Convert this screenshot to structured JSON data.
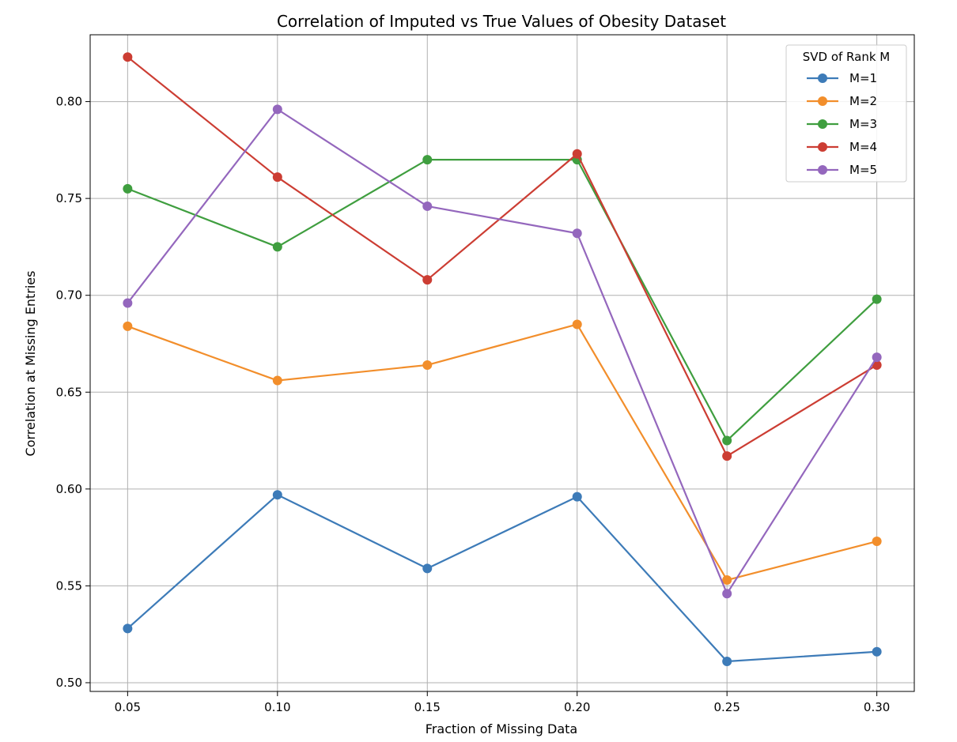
{
  "chart_data": {
    "type": "line",
    "title": "Correlation of Imputed vs True Values of Obesity Dataset",
    "xlabel": "Fraction of Missing Data",
    "ylabel": "Correlation at Missing Entries",
    "x": [
      0.05,
      0.1,
      0.15,
      0.2,
      0.25,
      0.3
    ],
    "x_tick_labels": [
      "0.05",
      "0.10",
      "0.15",
      "0.20",
      "0.25",
      "0.30"
    ],
    "xlim": [
      0.0375,
      0.3125
    ],
    "ylim": [
      0.4955,
      0.8345
    ],
    "y_ticks": [
      0.5,
      0.55,
      0.6,
      0.65,
      0.7,
      0.75,
      0.8
    ],
    "y_tick_labels": [
      "0.50",
      "0.55",
      "0.60",
      "0.65",
      "0.70",
      "0.75",
      "0.80"
    ],
    "grid": true,
    "legend": {
      "title": "SVD of Rank M",
      "placement": "top-right"
    },
    "series": [
      {
        "name": "M=1",
        "color": "#3d7bb8",
        "values": [
          0.528,
          0.597,
          0.559,
          0.596,
          0.511,
          0.516
        ]
      },
      {
        "name": "M=2",
        "color": "#f28e2b",
        "values": [
          0.684,
          0.656,
          0.664,
          0.685,
          0.553,
          0.573
        ]
      },
      {
        "name": "M=3",
        "color": "#3f9e3f",
        "values": [
          0.755,
          0.725,
          0.77,
          0.77,
          0.625,
          0.698
        ]
      },
      {
        "name": "M=4",
        "color": "#cc3d33",
        "values": [
          0.823,
          0.761,
          0.708,
          0.773,
          0.617,
          0.664
        ]
      },
      {
        "name": "M=5",
        "color": "#9467bd",
        "values": [
          0.696,
          0.796,
          0.746,
          0.732,
          0.546,
          0.668
        ]
      }
    ]
  }
}
